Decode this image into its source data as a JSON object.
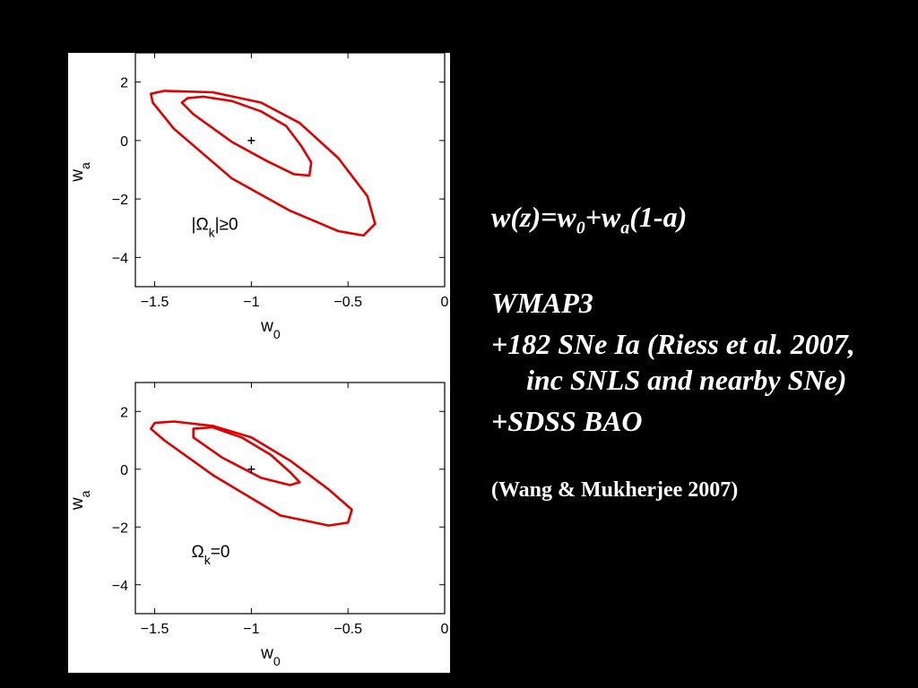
{
  "slide": {
    "equation": {
      "base": "w(z)=w",
      "sub1": "0",
      "mid": "+w",
      "sub2": "a",
      "tail": "(1-a)"
    },
    "bullets": [
      "WMAP3",
      "+182 SNe Ia (Riess et al. 2007, inc SNLS and nearby SNe)",
      "+SDSS BAO"
    ],
    "citation": "(Wang & Mukherjee 2007)"
  },
  "colors": {
    "background": "#000000",
    "contour": "#e00000",
    "slide_text": "#ffffff"
  },
  "chart_data": [
    {
      "type": "contour",
      "annotation": {
        "pre": "|Ω",
        "sub": "k",
        "post": "|≥0"
      },
      "xlabel": {
        "base": "w",
        "sub": "0"
      },
      "ylabel": {
        "base": "w",
        "sub": "a"
      },
      "xlim": [
        -1.6,
        0
      ],
      "ylim": [
        -5,
        3
      ],
      "xticks": [
        -1.5,
        -1,
        -0.5,
        0
      ],
      "xtick_labels": [
        "−1.5",
        "−1",
        "−0.5",
        "0"
      ],
      "yticks": [
        2,
        0,
        -2,
        -4
      ],
      "ytick_labels": [
        "2",
        "0",
        "−2",
        "−4"
      ],
      "fiducial": [
        -1,
        0
      ],
      "grid": false,
      "contours": [
        {
          "level": "inner",
          "points": [
            [
              -1.33,
              1.45
            ],
            [
              -1.25,
              1.5
            ],
            [
              -1.1,
              1.35
            ],
            [
              -0.95,
              1.0
            ],
            [
              -0.82,
              0.5
            ],
            [
              -0.74,
              -0.2
            ],
            [
              -0.69,
              -0.75
            ],
            [
              -0.7,
              -1.2
            ],
            [
              -0.78,
              -1.15
            ],
            [
              -0.92,
              -0.7
            ],
            [
              -1.1,
              -0.05
            ],
            [
              -1.3,
              0.9
            ],
            [
              -1.36,
              1.3
            ]
          ]
        },
        {
          "level": "outer",
          "points": [
            [
              -1.52,
              1.6
            ],
            [
              -1.45,
              1.7
            ],
            [
              -1.2,
              1.65
            ],
            [
              -0.95,
              1.3
            ],
            [
              -0.75,
              0.6
            ],
            [
              -0.55,
              -0.6
            ],
            [
              -0.4,
              -1.9
            ],
            [
              -0.36,
              -2.85
            ],
            [
              -0.42,
              -3.25
            ],
            [
              -0.55,
              -3.1
            ],
            [
              -0.8,
              -2.4
            ],
            [
              -1.1,
              -1.3
            ],
            [
              -1.4,
              0.4
            ],
            [
              -1.51,
              1.3
            ]
          ]
        }
      ]
    },
    {
      "type": "contour",
      "annotation": {
        "pre": "Ω",
        "sub": "k",
        "post": "=0"
      },
      "xlabel": {
        "base": "w",
        "sub": "0"
      },
      "ylabel": {
        "base": "w",
        "sub": "a"
      },
      "xlim": [
        -1.6,
        0
      ],
      "ylim": [
        -5,
        3
      ],
      "xticks": [
        -1.5,
        -1,
        -0.5,
        0
      ],
      "xtick_labels": [
        "−1.5",
        "−1",
        "−0.5",
        "0"
      ],
      "yticks": [
        2,
        0,
        -2,
        -4
      ],
      "ytick_labels": [
        "2",
        "0",
        "−2",
        "−4"
      ],
      "fiducial": [
        -1,
        0
      ],
      "grid": false,
      "contours": [
        {
          "level": "inner",
          "points": [
            [
              -1.3,
              1.4
            ],
            [
              -1.2,
              1.45
            ],
            [
              -1.05,
              1.1
            ],
            [
              -0.9,
              0.5
            ],
            [
              -0.8,
              -0.1
            ],
            [
              -0.75,
              -0.45
            ],
            [
              -0.8,
              -0.55
            ],
            [
              -0.95,
              -0.3
            ],
            [
              -1.15,
              0.4
            ],
            [
              -1.3,
              1.1
            ]
          ]
        },
        {
          "level": "outer",
          "points": [
            [
              -1.5,
              1.6
            ],
            [
              -1.4,
              1.65
            ],
            [
              -1.2,
              1.5
            ],
            [
              -1.0,
              1.1
            ],
            [
              -0.8,
              0.3
            ],
            [
              -0.6,
              -0.7
            ],
            [
              -0.48,
              -1.4
            ],
            [
              -0.5,
              -1.85
            ],
            [
              -0.6,
              -1.95
            ],
            [
              -0.85,
              -1.6
            ],
            [
              -1.2,
              -0.2
            ],
            [
              -1.45,
              1.0
            ],
            [
              -1.52,
              1.4
            ]
          ]
        }
      ]
    }
  ]
}
